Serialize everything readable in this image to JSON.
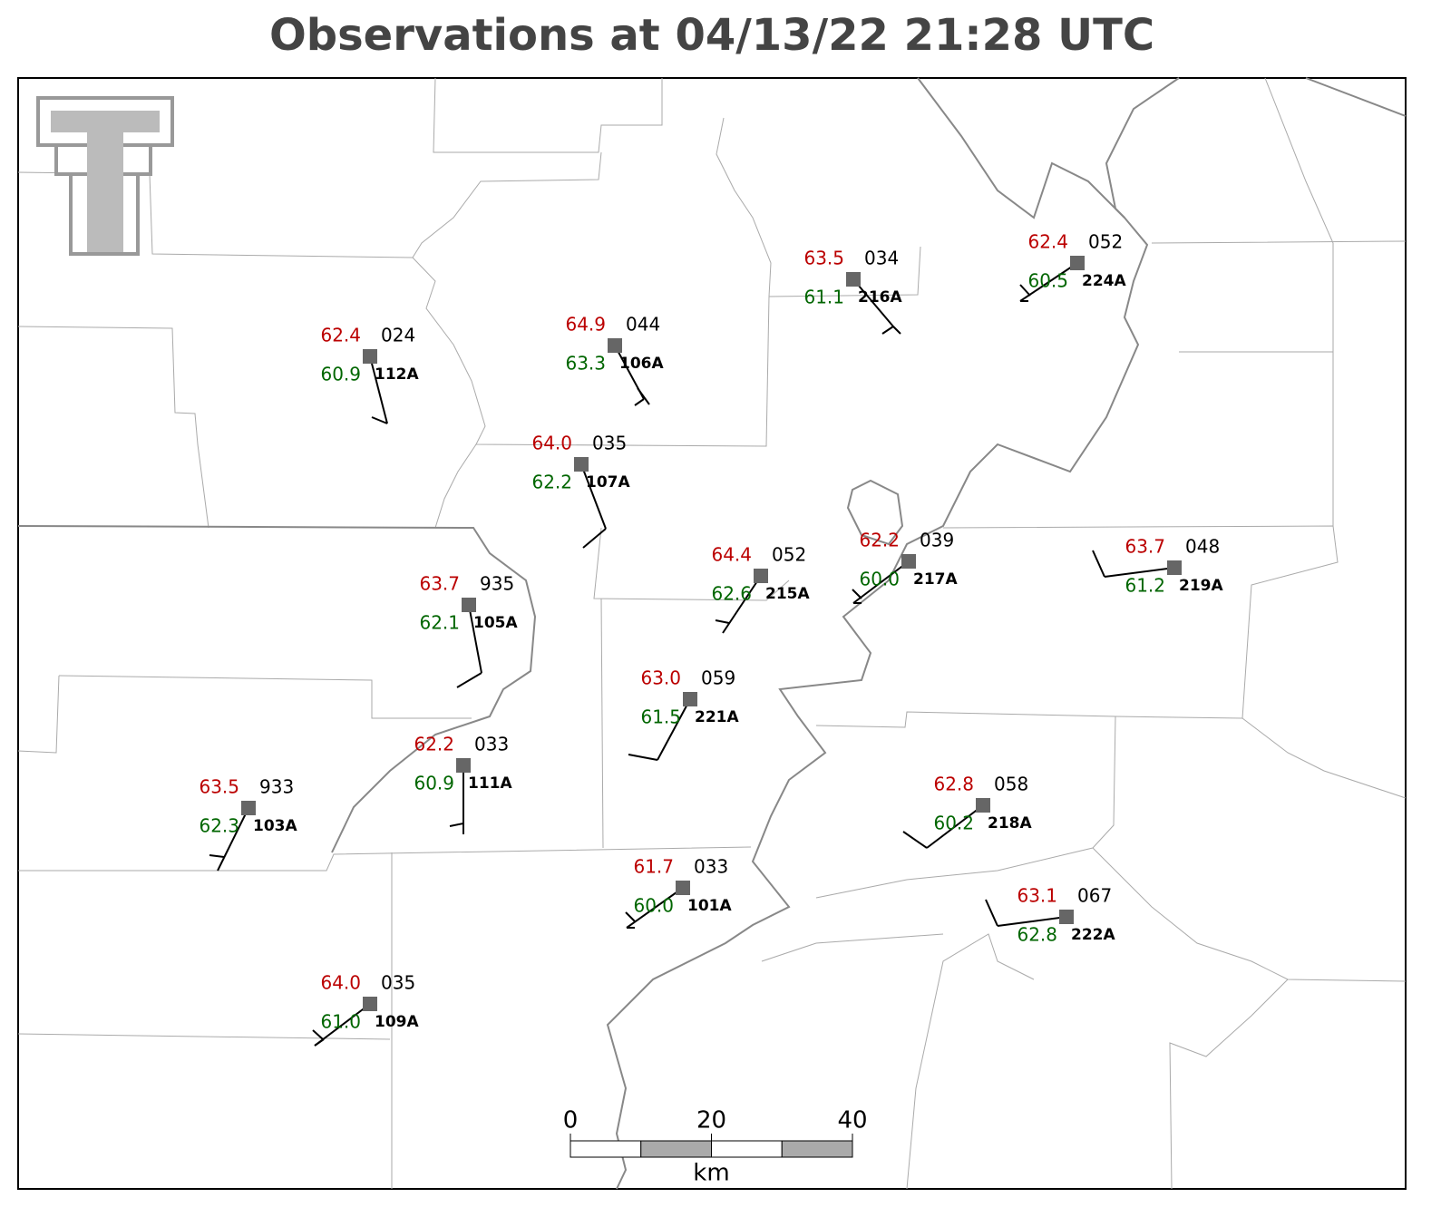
{
  "title": "Observations at 04/13/22 21:28 UTC",
  "stations": [
    {
      "id": "112A",
      "temperature": "62.4",
      "dewpoint": "60.9",
      "pressure": "024"
    },
    {
      "id": "106A",
      "temperature": "64.9",
      "dewpoint": "63.3",
      "pressure": "044"
    },
    {
      "id": "107A",
      "temperature": "64.0",
      "dewpoint": "62.2",
      "pressure": "035"
    },
    {
      "id": "216A",
      "temperature": "63.5",
      "dewpoint": "61.1",
      "pressure": "034"
    },
    {
      "id": "224A",
      "temperature": "62.4",
      "dewpoint": "60.5",
      "pressure": "052"
    },
    {
      "id": "105A",
      "temperature": "63.7",
      "dewpoint": "62.1",
      "pressure": "935"
    },
    {
      "id": "215A",
      "temperature": "64.4",
      "dewpoint": "62.6",
      "pressure": "052"
    },
    {
      "id": "217A",
      "temperature": "62.2",
      "dewpoint": "60.0",
      "pressure": "039"
    },
    {
      "id": "219A",
      "temperature": "63.7",
      "dewpoint": "61.2",
      "pressure": "048"
    },
    {
      "id": "221A",
      "temperature": "63.0",
      "dewpoint": "61.5",
      "pressure": "059"
    },
    {
      "id": "111A",
      "temperature": "62.2",
      "dewpoint": "60.9",
      "pressure": "033"
    },
    {
      "id": "103A",
      "temperature": "63.5",
      "dewpoint": "62.3",
      "pressure": "933"
    },
    {
      "id": "218A",
      "temperature": "62.8",
      "dewpoint": "60.2",
      "pressure": "058"
    },
    {
      "id": "101A",
      "temperature": "61.7",
      "dewpoint": "60.0",
      "pressure": "033"
    },
    {
      "id": "222A",
      "temperature": "63.1",
      "dewpoint": "62.8",
      "pressure": "067"
    },
    {
      "id": "109A",
      "temperature": "64.0",
      "dewpoint": "61.0",
      "pressure": "035"
    }
  ],
  "scale_bar": {
    "labels": [
      "0",
      "20",
      "40"
    ],
    "unit": "km"
  }
}
